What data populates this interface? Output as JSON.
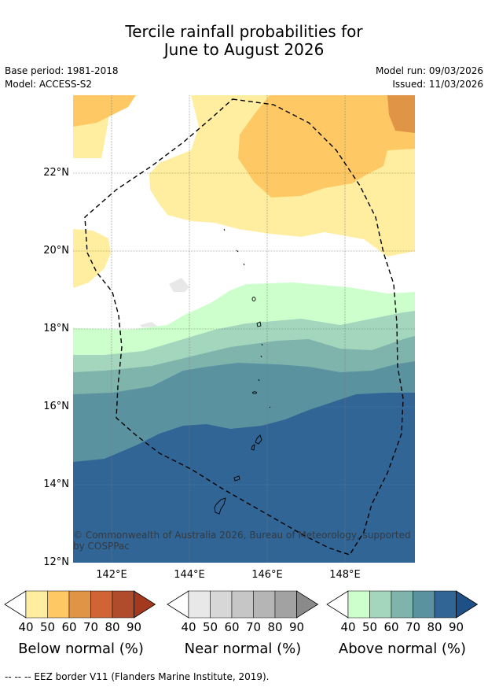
{
  "title": {
    "line1": "Tercile rainfall probabilities for",
    "line2": "June to August 2026"
  },
  "meta": {
    "base_period": "Base period: 1981-2018",
    "model": "Model: ACCESS-S2",
    "model_run": "Model run: 09/03/2026",
    "issued": "Issued: 11/03/2026"
  },
  "axes": {
    "lat_labels": [
      "22°N",
      "20°N",
      "18°N",
      "16°N",
      "14°N",
      "12°N"
    ],
    "lon_labels": [
      "142°E",
      "144°E",
      "146°E",
      "148°E"
    ]
  },
  "copyright": "© Commonwealth of Australia 2026, Bureau of Meteorology, supported by COSPPac",
  "colorbars": [
    {
      "label": "Below normal (%)",
      "ticks": [
        "40",
        "50",
        "60",
        "70",
        "80",
        "90"
      ],
      "colors": [
        "#ffffff",
        "#ffeda0",
        "#fec965",
        "#e09445",
        "#d06435",
        "#b04b2b",
        "#a33a1f"
      ]
    },
    {
      "label": "Near normal (%)",
      "ticks": [
        "40",
        "50",
        "60",
        "70",
        "80",
        "90"
      ],
      "colors": [
        "#ffffff",
        "#e8e8e8",
        "#d7d7d7",
        "#c6c6c6",
        "#b5b5b5",
        "#a2a2a2",
        "#8a8a8a"
      ]
    },
    {
      "label": "Above normal (%)",
      "ticks": [
        "40",
        "50",
        "60",
        "70",
        "80",
        "90"
      ],
      "colors": [
        "#ffffff",
        "#ccffcc",
        "#a3d6bc",
        "#7fb4ad",
        "#5b92a0",
        "#316596",
        "#1e4f85"
      ]
    }
  ],
  "footer": "--  --  -- EEZ border V11 (Flanders Marine Institute, 2019)."
}
